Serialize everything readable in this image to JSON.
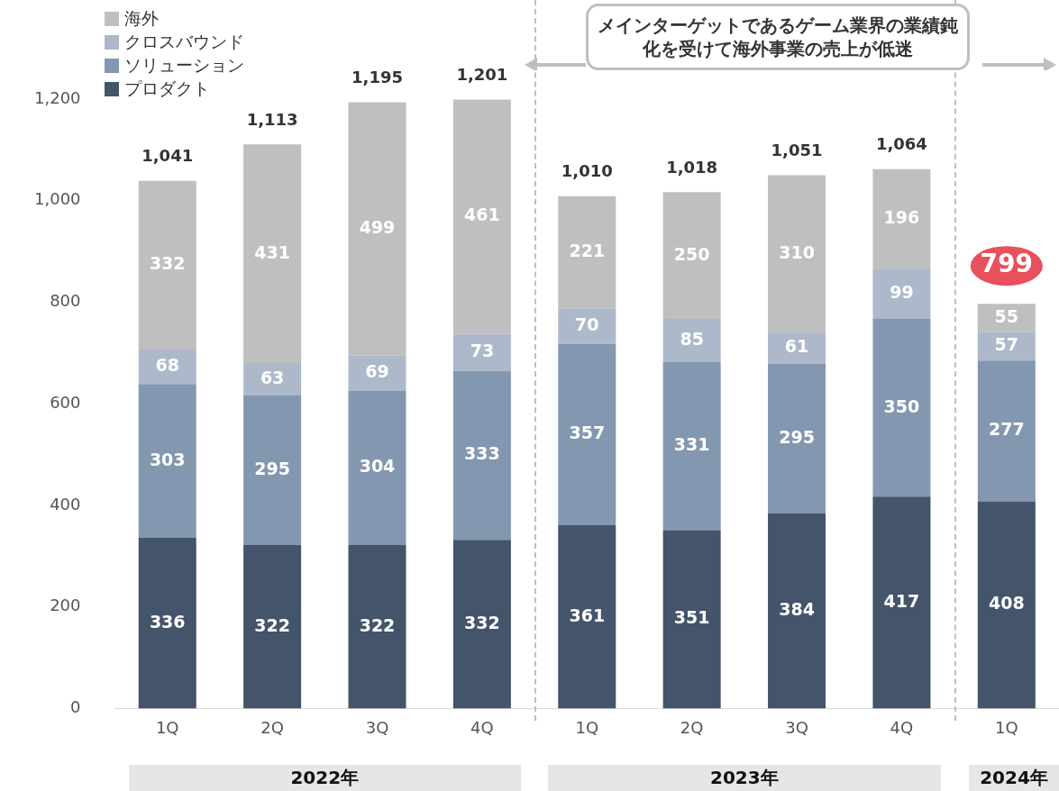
{
  "chart_data": {
    "type": "bar",
    "stacked": true,
    "categories": [
      "1Q",
      "2Q",
      "3Q",
      "4Q",
      "1Q",
      "2Q",
      "3Q",
      "4Q",
      "1Q"
    ],
    "series": [
      {
        "name": "プロダクト",
        "color": "#44546a",
        "values": [
          336,
          322,
          322,
          332,
          361,
          351,
          384,
          417,
          408
        ]
      },
      {
        "name": "ソリューション",
        "color": "#8497b0",
        "values": [
          303,
          295,
          304,
          333,
          357,
          331,
          295,
          350,
          277
        ]
      },
      {
        "name": "クロスバウンド",
        "color": "#adb9ca",
        "values": [
          68,
          63,
          69,
          73,
          70,
          85,
          61,
          99,
          57
        ]
      },
      {
        "name": "海外",
        "color": "#bfbfbf",
        "values": [
          332,
          431,
          499,
          461,
          221,
          250,
          310,
          196,
          55
        ]
      }
    ],
    "totals": [
      "1,041",
      "1,113",
      "1,195",
      "1,201",
      "1,010",
      "1,018",
      "1,051",
      "1,064",
      "799"
    ],
    "ylim": [
      0,
      1200
    ],
    "yticks": [
      0,
      {
        "value": 200,
        "label": "200"
      },
      {
        "value": 400,
        "label": "400"
      },
      {
        "value": 600,
        "label": "600"
      },
      {
        "value": 800,
        "label": "800"
      },
      {
        "value": 1000,
        "label": "1,000"
      },
      {
        "value": 1200,
        "label": "1,200"
      }
    ],
    "grid": false,
    "legend": "top left",
    "data_labels": true,
    "annotations": [
      "メインターゲットであるゲーム業界の業績鈍化を受けて海外事業の売上が低迷",
      "2022年",
      "2023年",
      "2024年"
    ]
  }
}
